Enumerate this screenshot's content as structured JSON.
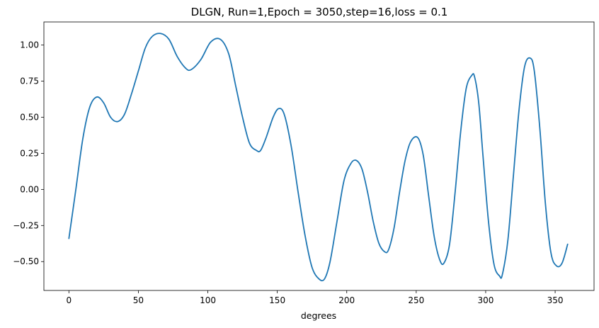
{
  "chart_data": {
    "type": "line",
    "title": "DLGN, Run=1,Epoch = 3050,step=16,loss = 0.1",
    "xlabel": "degrees",
    "ylabel": "",
    "xlim": [
      -18,
      378
    ],
    "ylim": [
      -0.7,
      1.16
    ],
    "grid": false,
    "x_ticks": [
      0,
      50,
      100,
      150,
      200,
      250,
      300,
      350
    ],
    "x_tick_labels": [
      "0",
      "50",
      "100",
      "150",
      "200",
      "250",
      "300",
      "350"
    ],
    "y_ticks": [
      -0.5,
      -0.25,
      0.0,
      0.25,
      0.5,
      0.75,
      1.0
    ],
    "y_tick_labels": [
      "−0.50",
      "−0.25",
      "0.00",
      "0.25",
      "0.50",
      "0.75",
      "1.00"
    ],
    "series": [
      {
        "color": "#1f77b4",
        "x": [
          0,
          5,
          10,
          15,
          20,
          25,
          30,
          35,
          40,
          45,
          50,
          55,
          60,
          66,
          72,
          78,
          84,
          88,
          95,
          102,
          109,
          115,
          120,
          125,
          130,
          135,
          138,
          142,
          147,
          151,
          155,
          160,
          165,
          170,
          175,
          180,
          184,
          188,
          193,
          198,
          203,
          207,
          211,
          215,
          219,
          223,
          227,
          230,
          234,
          238,
          242,
          246,
          251,
          255,
          259,
          263,
          267,
          270,
          274,
          278,
          282,
          286,
          290,
          292,
          295,
          298,
          302,
          306,
          310,
          312,
          316,
          320,
          324,
          328,
          332,
          335,
          339,
          343,
          347,
          351,
          355,
          359
        ],
        "y": [
          -0.34,
          0.0,
          0.35,
          0.57,
          0.64,
          0.6,
          0.5,
          0.47,
          0.52,
          0.66,
          0.82,
          0.98,
          1.06,
          1.08,
          1.04,
          0.92,
          0.84,
          0.83,
          0.9,
          1.02,
          1.04,
          0.94,
          0.72,
          0.5,
          0.32,
          0.27,
          0.27,
          0.36,
          0.5,
          0.56,
          0.52,
          0.3,
          -0.02,
          -0.32,
          -0.54,
          -0.62,
          -0.62,
          -0.5,
          -0.22,
          0.06,
          0.18,
          0.2,
          0.14,
          -0.02,
          -0.22,
          -0.37,
          -0.43,
          -0.42,
          -0.27,
          -0.02,
          0.2,
          0.33,
          0.36,
          0.24,
          -0.05,
          -0.33,
          -0.49,
          -0.51,
          -0.38,
          -0.02,
          0.4,
          0.7,
          0.79,
          0.78,
          0.6,
          0.24,
          -0.22,
          -0.52,
          -0.6,
          -0.59,
          -0.35,
          0.1,
          0.55,
          0.85,
          0.91,
          0.82,
          0.42,
          -0.1,
          -0.44,
          -0.53,
          -0.51,
          -0.38
        ]
      }
    ]
  }
}
